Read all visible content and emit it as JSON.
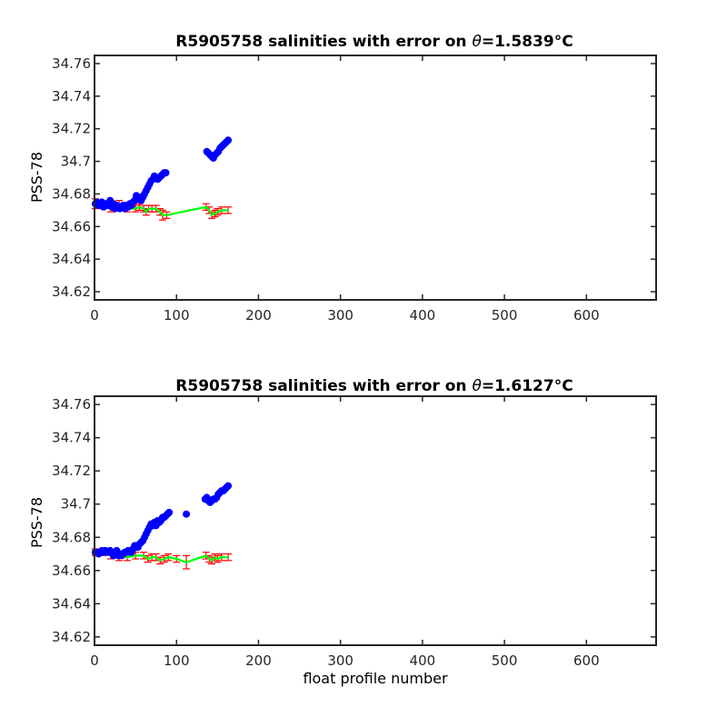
{
  "chart_data": [
    {
      "type": "scatter",
      "title_prefix": "R5905758 salinities with error on ",
      "title_theta": "θ",
      "title_value": "=1.5839",
      "title_unit": "°C",
      "xlabel": "",
      "ylabel": "PSS-78",
      "xlim": [
        0,
        685
      ],
      "ylim": [
        34.615,
        34.765
      ],
      "xticks": [
        "0",
        "100",
        "200",
        "300",
        "400",
        "500",
        "600"
      ],
      "yticks": [
        "34.62",
        "34.64",
        "34.66",
        "34.68",
        "34.7",
        "34.72",
        "34.74",
        "34.76"
      ],
      "colors": {
        "float": "#0000ff",
        "mapped": "#00ff00",
        "error": "#ff0000"
      },
      "series": [
        {
          "role": "float",
          "x": [
            1,
            3,
            5,
            7,
            9,
            11,
            13,
            15,
            17,
            19,
            21,
            23,
            25,
            27,
            29,
            31,
            33,
            35,
            37,
            39,
            41,
            43,
            45,
            47,
            49,
            51,
            53,
            55,
            57,
            59,
            61,
            63,
            65,
            67,
            69,
            71,
            73,
            75,
            77,
            79,
            81,
            83,
            85,
            87,
            137,
            139,
            141,
            143,
            145,
            147,
            149,
            151,
            153,
            155,
            157,
            159,
            161,
            163
          ],
          "y": [
            34.674,
            34.675,
            34.673,
            34.674,
            34.675,
            34.672,
            34.674,
            34.673,
            34.673,
            34.676,
            34.672,
            34.674,
            34.671,
            34.673,
            34.672,
            34.671,
            34.672,
            34.673,
            34.671,
            34.673,
            34.672,
            34.674,
            34.673,
            34.675,
            34.676,
            34.679,
            34.677,
            34.678,
            34.676,
            34.678,
            34.68,
            34.682,
            34.684,
            34.686,
            34.688,
            34.689,
            34.691,
            34.69,
            34.689,
            34.69,
            34.691,
            34.692,
            34.693,
            34.693,
            34.706,
            34.705,
            34.704,
            34.703,
            34.702,
            34.704,
            34.705,
            34.706,
            34.708,
            34.709,
            34.71,
            34.711,
            34.712,
            34.713
          ]
        },
        {
          "role": "mapped",
          "x": [
            1,
            10,
            20,
            30,
            40,
            50,
            55,
            60,
            63,
            66,
            70,
            75,
            80,
            83,
            88,
            136,
            140,
            143,
            147,
            150,
            155,
            163
          ],
          "y": [
            34.674,
            34.673,
            34.671,
            34.673,
            34.671,
            34.671,
            34.672,
            34.671,
            34.669,
            34.671,
            34.671,
            34.671,
            34.669,
            34.667,
            34.667,
            34.672,
            34.67,
            34.667,
            34.668,
            34.669,
            34.67,
            34.67
          ],
          "err": [
            0.003,
            0.002,
            0.002,
            0.003,
            0.002,
            0.002,
            0.002,
            0.002,
            0.002,
            0.002,
            0.002,
            0.002,
            0.002,
            0.003,
            0.002,
            0.002,
            0.002,
            0.002,
            0.002,
            0.002,
            0.002,
            0.002
          ]
        }
      ]
    },
    {
      "type": "scatter",
      "title_prefix": "R5905758 salinities with error on ",
      "title_theta": "θ",
      "title_value": "=1.6127",
      "title_unit": "°C",
      "xlabel": "float profile number",
      "ylabel": "PSS-78",
      "xlim": [
        0,
        685
      ],
      "ylim": [
        34.615,
        34.765
      ],
      "xticks": [
        "0",
        "100",
        "200",
        "300",
        "400",
        "500",
        "600"
      ],
      "yticks": [
        "34.62",
        "34.64",
        "34.66",
        "34.68",
        "34.7",
        "34.72",
        "34.74",
        "34.76"
      ],
      "colors": {
        "float": "#0000ff",
        "mapped": "#00ff00",
        "error": "#ff0000"
      },
      "series": [
        {
          "role": "float",
          "x": [
            1,
            3,
            5,
            7,
            9,
            11,
            13,
            15,
            17,
            19,
            21,
            23,
            25,
            27,
            29,
            31,
            33,
            35,
            37,
            39,
            41,
            43,
            45,
            47,
            49,
            51,
            53,
            55,
            57,
            59,
            61,
            63,
            65,
            67,
            69,
            71,
            73,
            75,
            77,
            79,
            81,
            83,
            85,
            87,
            89,
            91,
            112,
            135,
            137,
            139,
            141,
            143,
            145,
            147,
            149,
            151,
            153,
            155,
            157,
            159,
            161,
            163
          ],
          "y": [
            34.671,
            34.671,
            34.67,
            34.671,
            34.672,
            34.671,
            34.672,
            34.671,
            34.671,
            34.672,
            34.671,
            34.669,
            34.67,
            34.672,
            34.669,
            34.67,
            34.669,
            34.67,
            34.671,
            34.671,
            34.672,
            34.671,
            34.671,
            34.673,
            34.675,
            34.674,
            34.674,
            34.676,
            34.677,
            34.678,
            34.68,
            34.682,
            34.684,
            34.686,
            34.688,
            34.687,
            34.689,
            34.687,
            34.69,
            34.689,
            34.69,
            34.692,
            34.692,
            34.693,
            34.694,
            34.695,
            34.694,
            34.703,
            34.704,
            34.702,
            34.701,
            34.702,
            34.703,
            34.703,
            34.704,
            34.706,
            34.707,
            34.708,
            34.708,
            34.709,
            34.71,
            34.711
          ]
        },
        {
          "role": "mapped",
          "x": [
            1,
            10,
            20,
            30,
            40,
            50,
            60,
            65,
            70,
            75,
            80,
            85,
            90,
            100,
            112,
            136,
            140,
            143,
            147,
            150,
            155,
            163
          ],
          "y": [
            34.671,
            34.671,
            34.669,
            34.668,
            34.668,
            34.669,
            34.669,
            34.667,
            34.668,
            34.668,
            34.666,
            34.667,
            34.668,
            34.667,
            34.665,
            34.669,
            34.667,
            34.666,
            34.668,
            34.667,
            34.668,
            34.668
          ],
          "err": [
            0.002,
            0.002,
            0.002,
            0.002,
            0.002,
            0.002,
            0.002,
            0.002,
            0.002,
            0.002,
            0.002,
            0.002,
            0.002,
            0.002,
            0.004,
            0.002,
            0.002,
            0.002,
            0.002,
            0.002,
            0.002,
            0.002
          ]
        }
      ]
    }
  ]
}
